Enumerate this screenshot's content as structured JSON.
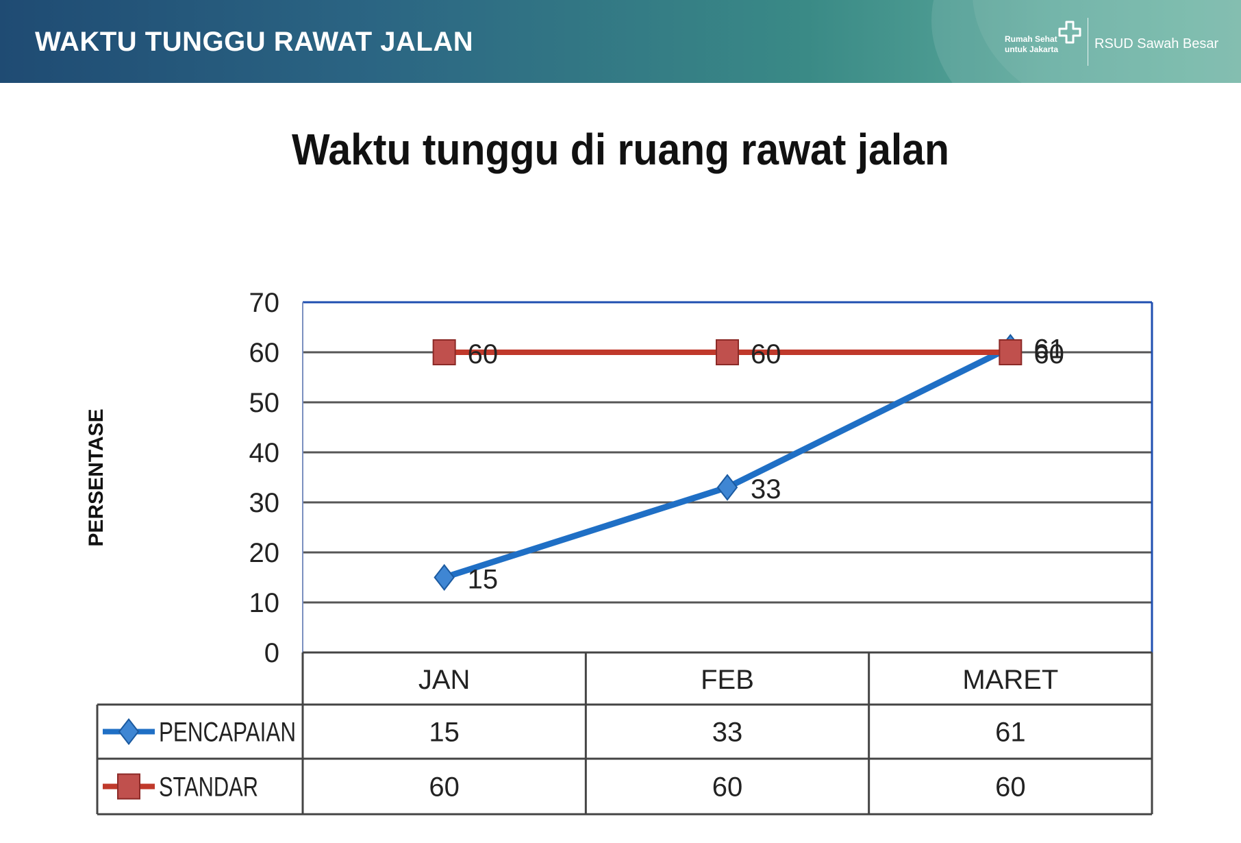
{
  "header": {
    "title": "WAKTU TUNGGU RAWAT JALAN",
    "logo_tagline_line1": "Rumah Sehat",
    "logo_tagline_line2": "untuk Jakarta",
    "logo_icon": "cross-icon",
    "hospital_name": "RSUD Sawah Besar"
  },
  "colors": {
    "header_start": "#1f4b73",
    "header_end": "#6cb3a2",
    "series_pencapaian": "#1f6fc5",
    "series_standar": "#c0392b",
    "frame": "#1f4fb0"
  },
  "chart_data": {
    "type": "line",
    "title": "Waktu tunggu di ruang rawat jalan",
    "xlabel": "",
    "ylabel": "PERSENTASE",
    "categories": [
      "JAN",
      "FEB",
      "MARET"
    ],
    "ylim": [
      0,
      70
    ],
    "yticks": [
      0,
      10,
      20,
      30,
      40,
      50,
      60,
      70
    ],
    "grid": true,
    "legend": "data-table-below",
    "series": [
      {
        "name": "PENCAPAIAN",
        "values": [
          15,
          33,
          61
        ],
        "marker": "diamond",
        "color": "#1f6fc5"
      },
      {
        "name": "STANDAR",
        "values": [
          60,
          60,
          60
        ],
        "marker": "square",
        "color": "#c0392b"
      }
    ]
  }
}
